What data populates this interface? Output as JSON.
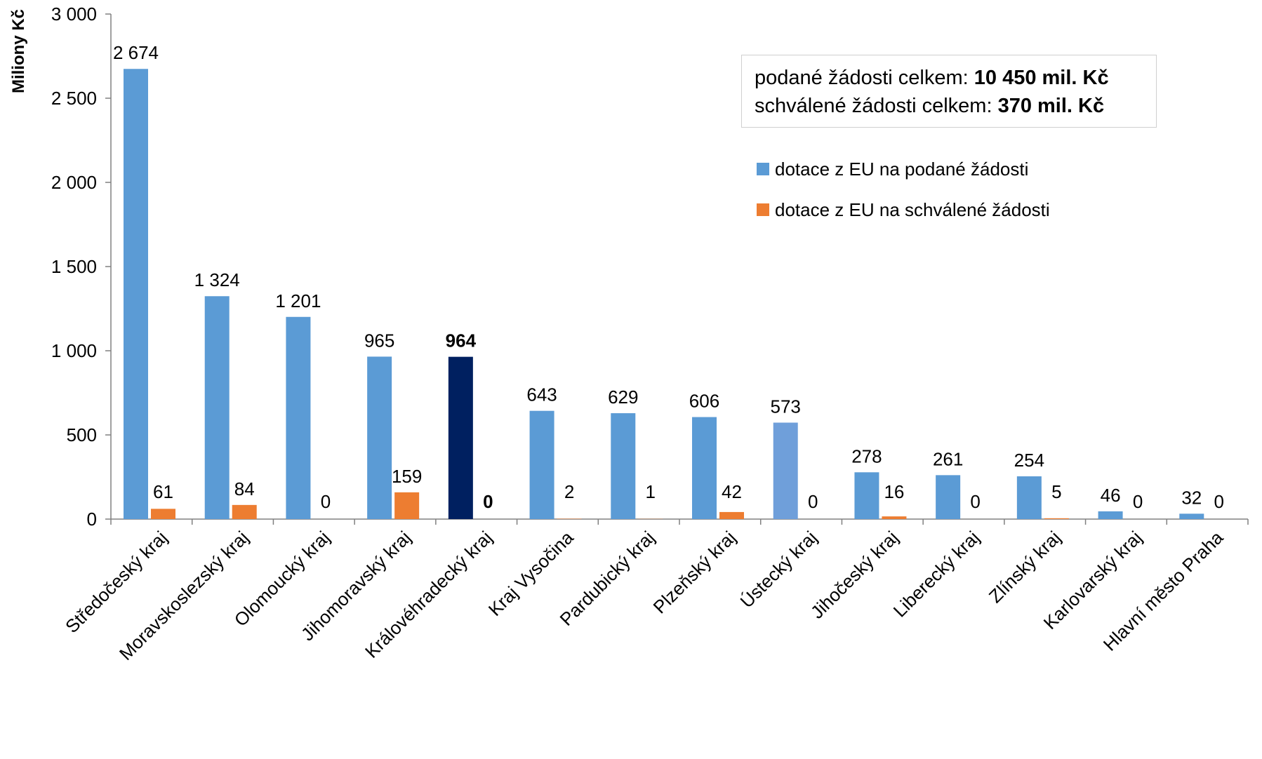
{
  "chart_data": {
    "type": "bar",
    "ylabel": "Miliony Kč",
    "ylim": [
      0,
      3000
    ],
    "y_ticks": [
      0,
      500,
      1000,
      1500,
      2000,
      2500,
      3000
    ],
    "y_tick_labels": [
      "0",
      "500",
      "1 000",
      "1 500",
      "2 000",
      "2 500",
      "3 000"
    ],
    "categories": [
      "Středočeský kraj",
      "Moravskoslezský kraj",
      "Olomoucký kraj",
      "Jihomoravský kraj",
      "Královéhradecký kraj",
      "Kraj Vysočina",
      "Pardubický kraj",
      "Plzeňský kraj",
      "Ústecký kraj",
      "Jihočeský kraj",
      "Liberecký kraj",
      "Zlínský kraj",
      "Karlovarský kraj",
      "Hlavní město Praha"
    ],
    "series": [
      {
        "name": "dotace z EU na podané žádosti",
        "values": [
          2674,
          1324,
          1201,
          965,
          964,
          643,
          629,
          606,
          573,
          278,
          261,
          254,
          46,
          32
        ],
        "labels": [
          "2 674",
          "1 324",
          "1 201",
          "965",
          "964",
          "643",
          "629",
          "606",
          "573",
          "278",
          "261",
          "254",
          "46",
          "32"
        ],
        "color": "#5b9bd5"
      },
      {
        "name": "dotace z EU na schválené žádosti",
        "values": [
          61,
          84,
          0,
          159,
          0,
          2,
          1,
          42,
          0,
          16,
          0,
          5,
          0,
          0
        ],
        "labels": [
          "61",
          "84",
          "0",
          "159",
          "0",
          "2",
          "1",
          "42",
          "0",
          "16",
          "0",
          "5",
          "0",
          "0"
        ],
        "color": "#ed7d31"
      }
    ],
    "highlight": {
      "category_index": 4,
      "color": "#002060"
    },
    "alt_bar_color": {
      "category_index": 8,
      "color": "#6f9fda"
    },
    "grid": false,
    "legend_position": "top-right"
  },
  "info_box": {
    "line1_label": "podané žádosti celkem: ",
    "line1_value": "10 450 mil. Kč",
    "line2_label": "schválené žádosti celkem: ",
    "line2_value": "370 mil. Kč"
  }
}
